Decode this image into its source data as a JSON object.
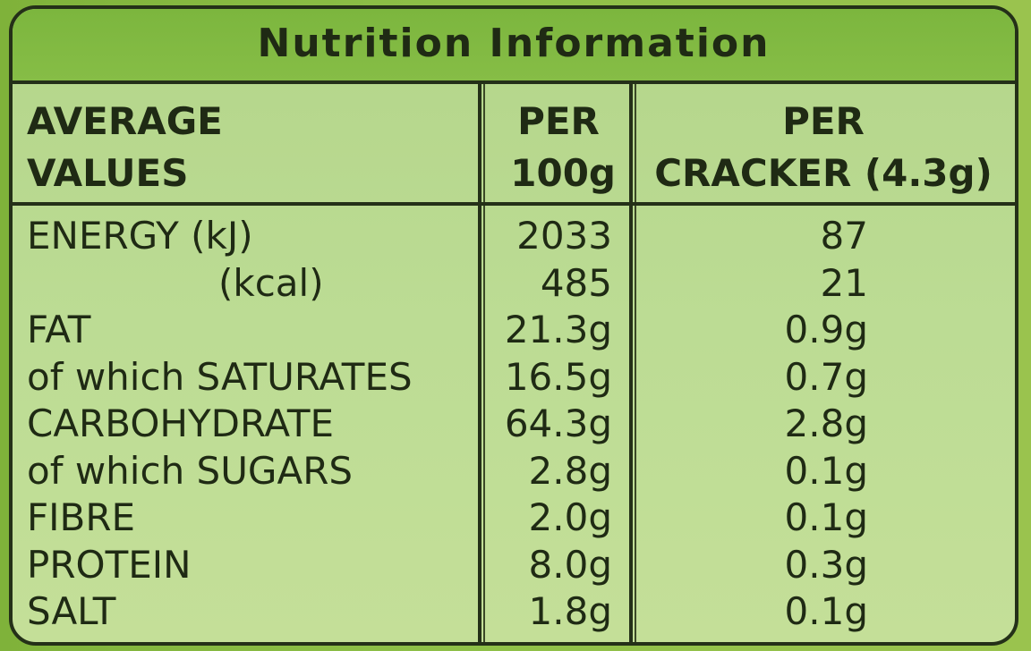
{
  "title": "Nutrition Information",
  "colors": {
    "background": "#8dbf47",
    "panel": "#bcdc94",
    "title_bar": "#7cb63e",
    "text": "#1f2a14",
    "border": "#243018"
  },
  "header": {
    "col1_line1": "AVERAGE",
    "col1_line2": "VALUES",
    "col2_line1": "PER",
    "col2_line2": "100g",
    "col3_line1": "PER",
    "col3_line2": "CRACKER (4.3g)"
  },
  "rows": [
    {
      "nutrient": "ENERGY (kJ)",
      "per_100g": "2033",
      "per_cracker": "87"
    },
    {
      "nutrient": "(kcal)",
      "per_100g": "485",
      "per_cracker": "21"
    },
    {
      "nutrient": "FAT",
      "per_100g": "21.3g",
      "per_cracker": "0.9g"
    },
    {
      "nutrient": "of which SATURATES",
      "per_100g": "16.5g",
      "per_cracker": "0.7g"
    },
    {
      "nutrient": "CARBOHYDRATE",
      "per_100g": "64.3g",
      "per_cracker": "2.8g"
    },
    {
      "nutrient": "of which SUGARS",
      "per_100g": "2.8g",
      "per_cracker": "0.1g"
    },
    {
      "nutrient": "FIBRE",
      "per_100g": "2.0g",
      "per_cracker": "0.1g"
    },
    {
      "nutrient": "PROTEIN",
      "per_100g": "8.0g",
      "per_cracker": "0.3g"
    },
    {
      "nutrient": "SALT",
      "per_100g": "1.8g",
      "per_cracker": "0.1g"
    }
  ]
}
